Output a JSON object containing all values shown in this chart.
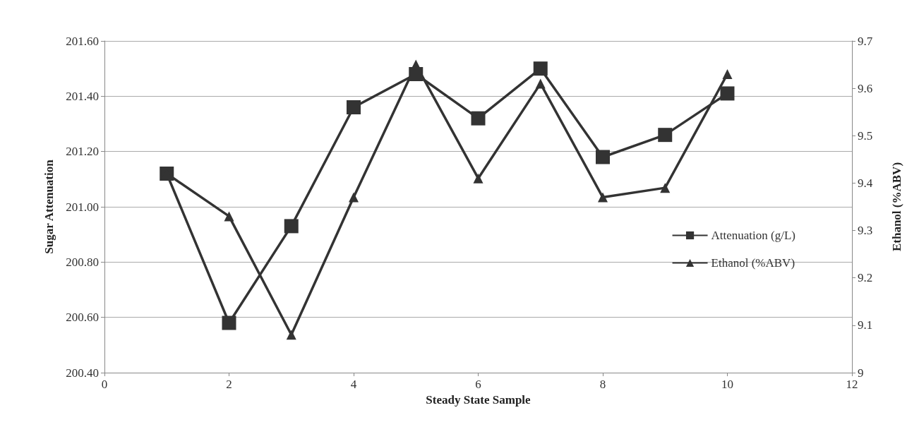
{
  "chart_data": {
    "type": "line",
    "x": [
      1,
      2,
      3,
      4,
      5,
      6,
      7,
      8,
      9,
      10
    ],
    "xlabel": "Steady State Sample",
    "ylabel": "Sugar Attenuation",
    "y2label": "Ethanol (%ABV)",
    "series": [
      {
        "name": "Attenuation (g/L)",
        "color": "#333333",
        "marker": "square",
        "values": [
          201.12,
          200.58,
          200.93,
          201.36,
          201.48,
          201.32,
          201.5,
          201.18,
          201.26,
          201.41
        ]
      },
      {
        "name": "Ethanol (%ABV)",
        "color": "#333333",
        "marker": "triangle",
        "axis": "y2",
        "values": [
          9.42,
          9.33,
          9.08,
          9.37,
          9.65,
          9.41,
          9.61,
          9.37,
          9.39,
          9.63
        ]
      }
    ],
    "xlim": [
      0,
      12
    ],
    "xticks": [
      0,
      2,
      4,
      6,
      8,
      10,
      12
    ],
    "ylim": [
      200.4,
      201.6
    ],
    "yticks": [
      {
        "value": 200.4,
        "label": "200.40"
      },
      {
        "value": 200.6,
        "label": "200.60"
      },
      {
        "value": 200.8,
        "label": "200.80"
      },
      {
        "value": 201.0,
        "label": "201.00"
      },
      {
        "value": 201.2,
        "label": "201.20"
      },
      {
        "value": 201.4,
        "label": "201.40"
      },
      {
        "value": 201.6,
        "label": "201.60"
      }
    ],
    "y2lim": [
      9,
      9.7
    ],
    "y2ticks": [
      9,
      9.1,
      9.2,
      9.3,
      9.4,
      9.5,
      9.6,
      9.7
    ],
    "grid": "y",
    "legend": "right",
    "line_style": "solid"
  }
}
